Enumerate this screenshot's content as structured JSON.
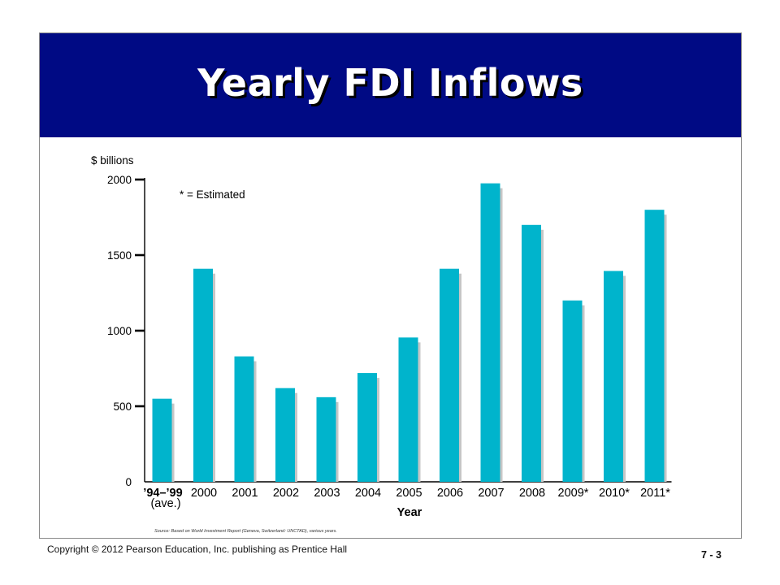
{
  "slide": {
    "title": "Yearly FDI Inflows",
    "source": "Source: Based on World Investment Report (Geneva, Switzerland: UNCTAD), various years.",
    "copyright": "Copyright © 2012 Pearson Education, Inc. publishing as Prentice Hall",
    "slide_number": "7 - 3"
  },
  "colors": {
    "banner": "#000a84",
    "bar": "#00b4cc",
    "bar_shadow": "#c6c6c6"
  },
  "chart_data": {
    "type": "bar",
    "ylabel": "$ billions",
    "xlabel": "Year",
    "note": "* = Estimated",
    "ylim": [
      0,
      2000
    ],
    "yticks": [
      0,
      500,
      1000,
      1500,
      2000
    ],
    "grid": false,
    "categories": [
      "’94–’99",
      "2000",
      "2001",
      "2002",
      "2003",
      "2004",
      "2005",
      "2006",
      "2007",
      "2008",
      "2009*",
      "2010*",
      "2011*"
    ],
    "category_sublabel": "(ave.)",
    "values": [
      550,
      1410,
      830,
      620,
      560,
      720,
      955,
      1410,
      1975,
      1700,
      1200,
      1395,
      1800
    ]
  }
}
